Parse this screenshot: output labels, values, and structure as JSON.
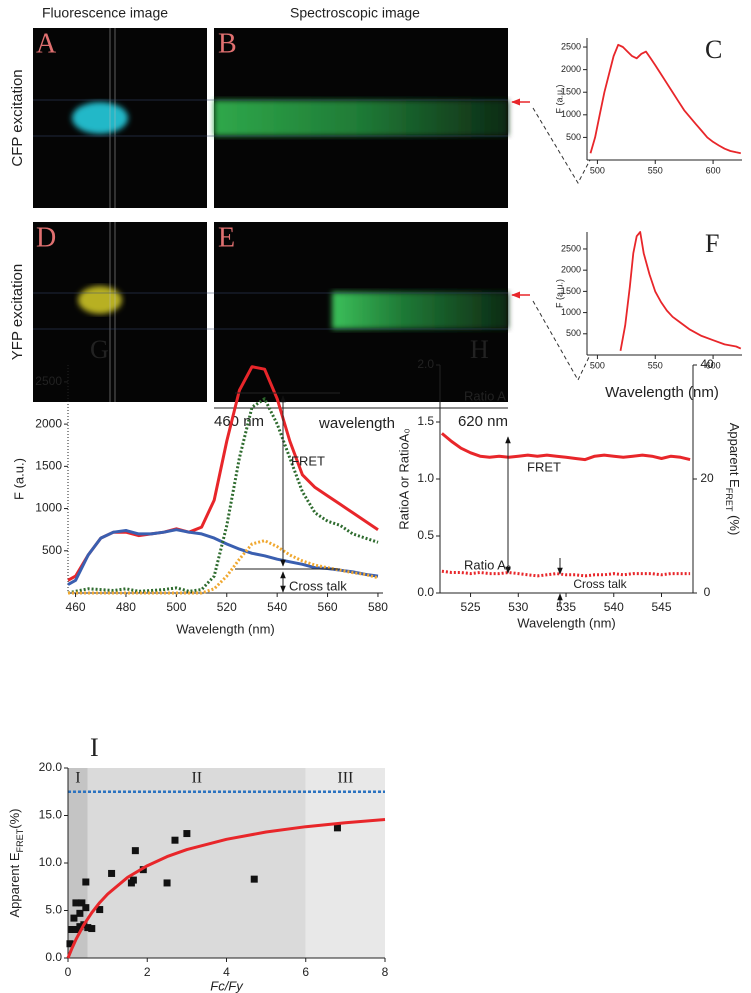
{
  "header": {
    "left": "Fluorescence image",
    "right": "Spectroscopic image"
  },
  "image_panels": [
    "A",
    "B",
    "D",
    "E"
  ],
  "rows": [
    "CFP excitation",
    "YFP excitation"
  ],
  "scale": {
    "start": "460 nm",
    "label": "wavelength",
    "end": "620 nm"
  },
  "chart_data": [
    {
      "type": "line",
      "title": "C",
      "ylabel": "F (a.u.)",
      "xlim": [
        491,
        625
      ],
      "xticks": [
        500,
        550,
        600
      ],
      "ylim": [
        0,
        2700
      ],
      "yticks": [
        500,
        1000,
        1500,
        2000,
        2500
      ],
      "series": [
        {
          "color": "#e8262a",
          "x": [
            494,
            498,
            502,
            506,
            510,
            514,
            518,
            522,
            526,
            530,
            534,
            538,
            542,
            546,
            550,
            555,
            560,
            565,
            570,
            575,
            580,
            585,
            590,
            595,
            600,
            605,
            610,
            615,
            620,
            624
          ],
          "values": [
            150,
            500,
            1000,
            1500,
            1900,
            2300,
            2550,
            2500,
            2400,
            2300,
            2250,
            2350,
            2400,
            2250,
            2100,
            1900,
            1700,
            1500,
            1300,
            1100,
            950,
            800,
            650,
            500,
            400,
            320,
            250,
            200,
            170,
            150
          ]
        }
      ]
    },
    {
      "type": "line",
      "title": "F",
      "ylabel": "F (a.u.)",
      "xlabel": "Wavelength (nm)",
      "xlim": [
        491,
        625
      ],
      "xticks": [
        500,
        550,
        600
      ],
      "ylim": [
        0,
        2900
      ],
      "yticks": [
        500,
        1000,
        1500,
        2000,
        2500
      ],
      "series": [
        {
          "color": "#e8262a",
          "x": [
            520,
            524,
            528,
            531,
            534,
            537,
            540,
            545,
            550,
            555,
            560,
            565,
            570,
            580,
            590,
            600,
            610,
            620,
            624
          ],
          "values": [
            100,
            700,
            1600,
            2400,
            2800,
            2900,
            2400,
            1900,
            1500,
            1250,
            1050,
            900,
            800,
            600,
            450,
            350,
            250,
            200,
            150
          ]
        }
      ]
    },
    {
      "type": "line",
      "title": "G",
      "ylabel": "F (a.u.)",
      "xlabel": "Wavelength (nm)",
      "xlim": [
        457,
        582
      ],
      "xticks": [
        460,
        480,
        500,
        520,
        540,
        560,
        580
      ],
      "ylim": [
        0,
        2700
      ],
      "yticks": [
        500,
        1000,
        1500,
        2000,
        2500
      ],
      "annotations": [
        "FRET",
        "Cross talk"
      ],
      "series": [
        {
          "color": "#e8262a",
          "x": [
            457,
            460,
            465,
            470,
            475,
            480,
            485,
            490,
            495,
            500,
            505,
            510,
            515,
            520,
            525,
            530,
            535,
            540,
            545,
            550,
            555,
            560,
            565,
            570,
            575,
            580
          ],
          "values": [
            150,
            200,
            450,
            650,
            720,
            720,
            680,
            700,
            720,
            760,
            720,
            780,
            1100,
            1800,
            2400,
            2680,
            2650,
            2300,
            1800,
            1400,
            1250,
            1150,
            1050,
            950,
            850,
            750
          ]
        },
        {
          "color": "#3a5fb0",
          "x": [
            457,
            460,
            465,
            470,
            475,
            480,
            485,
            490,
            495,
            500,
            505,
            510,
            515,
            520,
            525,
            530,
            535,
            540,
            545,
            550,
            555,
            560,
            565,
            570,
            575,
            580
          ],
          "values": [
            100,
            150,
            450,
            650,
            720,
            740,
            700,
            700,
            720,
            750,
            720,
            700,
            650,
            580,
            520,
            470,
            440,
            400,
            370,
            340,
            300,
            290,
            270,
            250,
            220,
            200
          ]
        },
        {
          "color": "#2e6b2e",
          "dashed": true,
          "x": [
            457,
            460,
            465,
            470,
            475,
            480,
            485,
            490,
            495,
            500,
            505,
            510,
            515,
            520,
            525,
            530,
            535,
            540,
            545,
            550,
            555,
            560,
            565,
            570,
            575,
            580
          ],
          "values": [
            0,
            20,
            50,
            40,
            30,
            50,
            20,
            30,
            40,
            60,
            20,
            40,
            200,
            800,
            1600,
            2200,
            2300,
            2000,
            1600,
            1200,
            950,
            850,
            800,
            700,
            650,
            600
          ]
        },
        {
          "color": "#f0a830",
          "dashed": true,
          "x": [
            457,
            460,
            465,
            470,
            475,
            480,
            485,
            490,
            495,
            500,
            505,
            510,
            515,
            520,
            525,
            530,
            535,
            540,
            545,
            550,
            555,
            560,
            565,
            570,
            575,
            580
          ],
          "values": [
            0,
            0,
            0,
            0,
            0,
            0,
            0,
            0,
            0,
            0,
            0,
            0,
            50,
            200,
            400,
            580,
            620,
            550,
            450,
            380,
            330,
            300,
            270,
            240,
            220,
            180
          ]
        }
      ]
    },
    {
      "type": "line",
      "title": "H",
      "ylabel": "RatioA or RatioA₀",
      "y2label": [
        "Apparent E",
        "FRET",
        " (%)"
      ],
      "xlabel": "Wavelength (nm)",
      "xlim": [
        521.8,
        548.3
      ],
      "xticks": [
        525,
        530,
        535,
        540,
        545
      ],
      "ylim": [
        0,
        2
      ],
      "yticks": [
        {
          "value": 0,
          "label": "0.0"
        },
        0.5,
        {
          "value": 1,
          "label": "1.0"
        },
        1.5,
        {
          "value": 2,
          "label": "2.0"
        }
      ],
      "y2lim": [
        0,
        40
      ],
      "y2ticks": [
        0,
        20,
        40
      ],
      "annotations": [
        "FRET",
        "Cross talk"
      ],
      "series": [
        {
          "name": "Ratio A",
          "color": "#e8262a",
          "x": [
            522,
            523,
            524,
            525,
            526,
            527,
            528,
            529,
            530,
            531,
            532,
            533,
            534,
            535,
            536,
            537,
            538,
            539,
            540,
            541,
            542,
            543,
            544,
            545,
            546,
            547,
            548
          ],
          "values": [
            1.4,
            1.33,
            1.27,
            1.23,
            1.2,
            1.19,
            1.2,
            1.19,
            1.2,
            1.21,
            1.2,
            1.21,
            1.2,
            1.19,
            1.18,
            1.17,
            1.2,
            1.21,
            1.2,
            1.19,
            1.2,
            1.21,
            1.2,
            1.18,
            1.2,
            1.19,
            1.17
          ]
        },
        {
          "name": "Ratio A₀",
          "color": "#e8262a",
          "dashed": true,
          "x": [
            522,
            523,
            524,
            525,
            526,
            527,
            528,
            529,
            530,
            531,
            532,
            533,
            534,
            535,
            536,
            537,
            538,
            539,
            540,
            541,
            542,
            543,
            544,
            545,
            546,
            547,
            548
          ],
          "values": [
            0.19,
            0.18,
            0.18,
            0.17,
            0.18,
            0.17,
            0.17,
            0.18,
            0.17,
            0.16,
            0.15,
            0.16,
            0.17,
            0.16,
            0.16,
            0.15,
            0.16,
            0.16,
            0.17,
            0.16,
            0.17,
            0.17,
            0.17,
            0.16,
            0.17,
            0.17,
            0.17
          ]
        }
      ]
    },
    {
      "type": "scatter",
      "title": "I",
      "ylabel": [
        "Apparent E",
        "FRET",
        "(%)"
      ],
      "xlabel": "Fc/Fy",
      "xlim": [
        0,
        8
      ],
      "xticks": [
        0,
        2,
        4,
        6,
        8
      ],
      "ylim": [
        0,
        20
      ],
      "yticks": [
        {
          "value": 0,
          "label": "0.0"
        },
        {
          "value": 5,
          "label": "5.0"
        },
        {
          "value": 10,
          "label": "10.0"
        },
        {
          "value": 15,
          "label": "15.0"
        },
        {
          "value": 20,
          "label": "20.0"
        }
      ],
      "regions": [
        {
          "label": "I",
          "range": [
            0,
            0.5
          ],
          "color": "#c4c4c4"
        },
        {
          "label": "II",
          "range": [
            0.5,
            6
          ],
          "color": "#dadada"
        },
        {
          "label": "III",
          "range": [
            6,
            8
          ],
          "color": "#e8e8e8"
        }
      ],
      "reference_line": {
        "value": 17.5,
        "color": "#2a72c0"
      },
      "series": [
        {
          "color": "#111111",
          "x": [
            0.05,
            0.1,
            0.15,
            0.2,
            0.2,
            0.3,
            0.3,
            0.35,
            0.4,
            0.45,
            0.45,
            0.5,
            0.6,
            0.8,
            1.1,
            1.6,
            1.65,
            1.7,
            1.9,
            2.5,
            2.7,
            3,
            4.7,
            6.8
          ],
          "values": [
            1.5,
            3,
            4.2,
            3,
            5.8,
            3.3,
            4.7,
            5.8,
            3.5,
            8,
            5.3,
            3.2,
            3.1,
            5.1,
            8.9,
            7.9,
            8.2,
            11.3,
            9.3,
            7.9,
            12.4,
            13.1,
            8.3,
            13.7
          ]
        },
        {
          "color": "#e8262a",
          "line": true,
          "x": [
            0,
            0.1,
            0.2,
            0.4,
            0.6,
            0.8,
            1,
            1.5,
            2,
            2.5,
            3,
            4,
            5,
            6,
            7,
            8
          ],
          "values": [
            0,
            1.03,
            1.94,
            3.5,
            4.77,
            5.83,
            6.73,
            8.47,
            9.72,
            10.67,
            11.41,
            12.5,
            13.26,
            13.82,
            14.24,
            14.58
          ]
        }
      ]
    }
  ]
}
